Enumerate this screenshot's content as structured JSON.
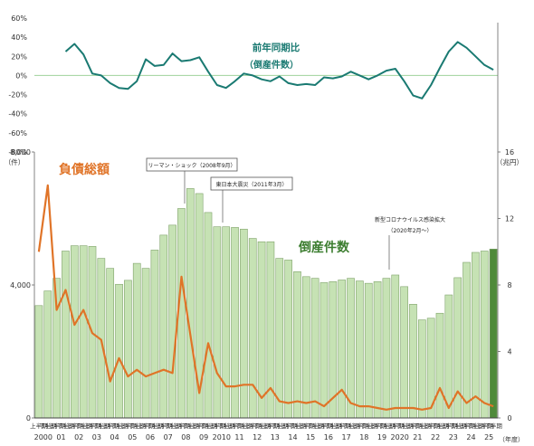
{
  "chart_data": [
    {
      "type": "line",
      "title": "前年同期比",
      "subtitle": "（倒産件数）",
      "ylim": [
        -80,
        60
      ],
      "y_ticks": [
        "60%",
        "40%",
        "20%",
        "0%",
        "-20%",
        "-40%",
        "-60%",
        "-80%"
      ],
      "zero_line": true,
      "series": [
        {
          "color": "#1a7a72",
          "values": [
            null,
            null,
            null,
            25,
            33,
            22,
            2,
            0,
            -8,
            -13,
            -14,
            -6,
            17,
            10,
            11,
            23,
            15,
            16,
            19,
            4,
            -10,
            -13,
            -6,
            2,
            0,
            -4,
            -6,
            -1,
            -8,
            -10,
            -9,
            -10,
            -2,
            -3,
            -1,
            4,
            0,
            -4,
            0,
            5,
            7,
            -6,
            -21,
            -24,
            -10,
            8,
            25,
            35,
            29,
            20,
            11,
            6
          ]
        }
      ]
    },
    {
      "type": "bar",
      "ylim_left": [
        0,
        8000
      ],
      "ylim_right": [
        0,
        16
      ],
      "y_left_ticks": [
        "8,000",
        "4,000",
        "0"
      ],
      "y_left_unit": "（件）",
      "y_right_ticks": [
        "16",
        "12",
        "8",
        "4",
        "0"
      ],
      "y_right_unit": "（兆円）",
      "half_labels": [
        "上半期",
        "下半期"
      ],
      "x_year_labels": [
        "2000",
        "01",
        "02",
        "03",
        "04",
        "05",
        "06",
        "07",
        "08",
        "09",
        "2010",
        "11",
        "12",
        "13",
        "14",
        "15",
        "16",
        "17",
        "18",
        "19",
        "2020",
        "21",
        "22",
        "23",
        "24",
        "25"
      ],
      "x_unit": "（年度）",
      "series": [
        {
          "name": "倒産件数",
          "color": "#c6e2b4",
          "edge": "#7fa36a",
          "last_color": "#4f8a3a",
          "axis": "left",
          "values": [
            3380,
            3820,
            4200,
            5020,
            5180,
            5180,
            5160,
            4800,
            4500,
            4020,
            4140,
            4650,
            4500,
            5050,
            5500,
            5800,
            6300,
            6900,
            6750,
            6180,
            5750,
            5750,
            5730,
            5680,
            5400,
            5300,
            5300,
            4800,
            4750,
            4400,
            4250,
            4200,
            4070,
            4100,
            4150,
            4200,
            4120,
            4050,
            4100,
            4200,
            4300,
            3950,
            3420,
            2950,
            3000,
            3150,
            3700,
            4220,
            4680,
            4980,
            5020,
            5080
          ]
        },
        {
          "name": "負債総額",
          "color": "#e07428",
          "axis": "right",
          "values": [
            10,
            14,
            6.5,
            7.7,
            5.6,
            6.5,
            5.1,
            4.7,
            2.2,
            3.6,
            2.5,
            2.9,
            2.5,
            2.7,
            2.9,
            2.7,
            8.5,
            5,
            1.5,
            4.5,
            2.7,
            1.9,
            1.9,
            2,
            2,
            1.2,
            1.8,
            1,
            0.9,
            1,
            0.9,
            1,
            0.7,
            1.2,
            1.7,
            0.9,
            0.7,
            0.7,
            0.6,
            0.5,
            0.6,
            0.6,
            0.6,
            0.5,
            0.6,
            1.8,
            0.6,
            1.6,
            0.9,
            1.3,
            0.9,
            0.7
          ]
        }
      ],
      "annotations": [
        {
          "text": "リーマン・ショック（2008年9月）"
        },
        {
          "text": "東日本大震災（2011年3月）"
        },
        {
          "line1": "新型コロナウイルス感染拡大",
          "line2": "（2020年2月～）"
        }
      ]
    }
  ]
}
